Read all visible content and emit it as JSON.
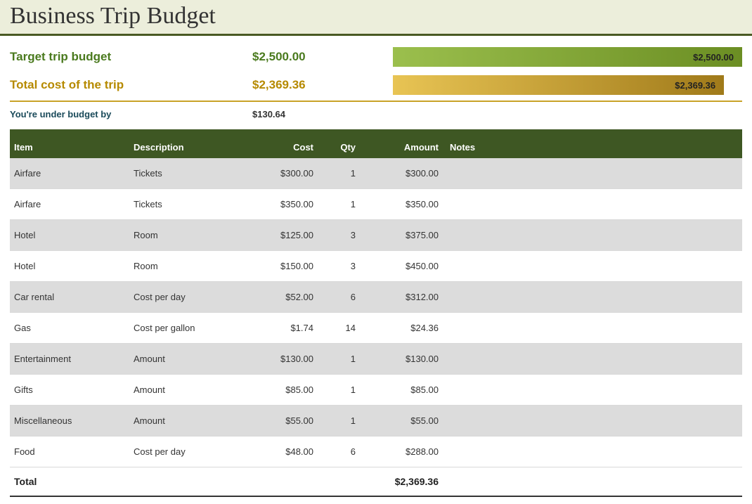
{
  "title": "Business Trip Budget",
  "colors": {
    "header_band_bg": "#eceedb",
    "header_underline": "#4a5a23",
    "target_text": "#4a7a1e",
    "actual_text": "#b68a00",
    "divider_gold": "#c9a227",
    "under_budget_text": "#1a4a5a",
    "table_header_bg": "#3e5723",
    "table_header_fg": "#ffffff",
    "row_alt_bg": "#dcdcdc",
    "bar_target_gradient": [
      "#9bbf4d",
      "#6b8e23"
    ],
    "bar_actual_gradient": [
      "#e8c454",
      "#a07a1a"
    ]
  },
  "summary": {
    "target_label": "Target trip budget",
    "target_value": "$2,500.00",
    "target_bar_text": "$2,500.00",
    "actual_label": "Total cost of the trip",
    "actual_value": "$2,369.36",
    "actual_bar_text": "$2,369.36",
    "actual_bar_width_pct": 94.8,
    "under_label": "You're under budget by",
    "under_value": "$130.64"
  },
  "table": {
    "headers": {
      "item": "Item",
      "description": "Description",
      "cost": "Cost",
      "qty": "Qty",
      "amount": "Amount",
      "notes": "Notes"
    },
    "rows": [
      {
        "item": "Airfare",
        "description": "Tickets",
        "cost": "$300.00",
        "qty": "1",
        "amount": "$300.00",
        "notes": ""
      },
      {
        "item": "Airfare",
        "description": "Tickets",
        "cost": "$350.00",
        "qty": "1",
        "amount": "$350.00",
        "notes": ""
      },
      {
        "item": "Hotel",
        "description": "Room",
        "cost": "$125.00",
        "qty": "3",
        "amount": "$375.00",
        "notes": ""
      },
      {
        "item": "Hotel",
        "description": "Room",
        "cost": "$150.00",
        "qty": "3",
        "amount": "$450.00",
        "notes": ""
      },
      {
        "item": "Car rental",
        "description": "Cost per day",
        "cost": "$52.00",
        "qty": "6",
        "amount": "$312.00",
        "notes": ""
      },
      {
        "item": "Gas",
        "description": "Cost per gallon",
        "cost": "$1.74",
        "qty": "14",
        "amount": "$24.36",
        "notes": ""
      },
      {
        "item": "Entertainment",
        "description": "Amount",
        "cost": "$130.00",
        "qty": "1",
        "amount": "$130.00",
        "notes": ""
      },
      {
        "item": "Gifts",
        "description": "Amount",
        "cost": "$85.00",
        "qty": "1",
        "amount": "$85.00",
        "notes": ""
      },
      {
        "item": "Miscellaneous",
        "description": "Amount",
        "cost": "$55.00",
        "qty": "1",
        "amount": "$55.00",
        "notes": ""
      },
      {
        "item": "Food",
        "description": "Cost per day",
        "cost": "$48.00",
        "qty": "6",
        "amount": "$288.00",
        "notes": ""
      }
    ],
    "footer": {
      "label": "Total",
      "amount": "$2,369.36"
    }
  }
}
